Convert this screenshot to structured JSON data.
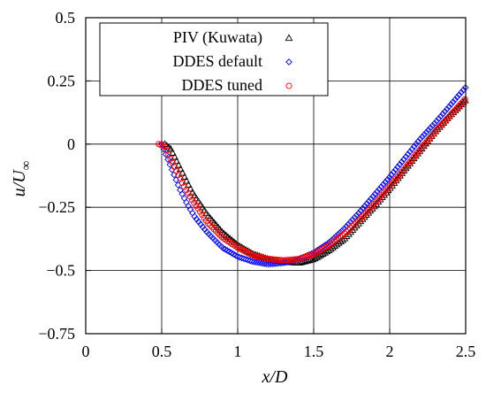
{
  "chart_data": {
    "type": "scatter",
    "title": "",
    "xlabel": "x/D",
    "ylabel_main": "u/U",
    "ylabel_sub": "∞",
    "xlim": [
      0,
      2.5
    ],
    "ylim": [
      -0.75,
      0.5
    ],
    "grid": true,
    "legend_position": "top-left",
    "x_ticks": [
      {
        "value": 0,
        "label": "0"
      },
      {
        "value": 0.5,
        "label": "0.5"
      },
      {
        "value": 1,
        "label": "1"
      },
      {
        "value": 1.5,
        "label": "1.5"
      },
      {
        "value": 2,
        "label": "2"
      },
      {
        "value": 2.5,
        "label": "2.5"
      }
    ],
    "y_ticks": [
      {
        "value": 0.5,
        "label": "0.5"
      },
      {
        "value": 0.25,
        "label": "0.25"
      },
      {
        "value": 0,
        "label": "0"
      },
      {
        "value": -0.25,
        "label": "−0.25"
      },
      {
        "value": -0.5,
        "label": "−0.5"
      },
      {
        "value": -0.75,
        "label": "−0.75"
      }
    ],
    "series": [
      {
        "name": "PIV (Kuwata)",
        "marker": "triangle",
        "color": "#000000",
        "x": [
          0.52,
          0.56,
          0.6,
          0.65,
          0.7,
          0.8,
          0.9,
          1.0,
          1.1,
          1.2,
          1.3,
          1.4,
          1.5,
          1.6,
          1.7,
          1.8,
          1.9,
          2.0,
          2.1,
          2.2,
          2.3,
          2.4,
          2.5
        ],
        "y": [
          0.0,
          -0.02,
          -0.07,
          -0.13,
          -0.19,
          -0.28,
          -0.35,
          -0.4,
          -0.435,
          -0.455,
          -0.465,
          -0.47,
          -0.455,
          -0.42,
          -0.375,
          -0.31,
          -0.245,
          -0.175,
          -0.1,
          -0.025,
          0.05,
          0.115,
          0.175
        ]
      },
      {
        "name": "DDES default",
        "marker": "diamond",
        "color": "#0000ff",
        "x": [
          0.5,
          0.54,
          0.58,
          0.62,
          0.67,
          0.72,
          0.8,
          0.9,
          1.0,
          1.1,
          1.2,
          1.3,
          1.4,
          1.5,
          1.6,
          1.7,
          1.8,
          1.9,
          2.0,
          2.1,
          2.2,
          2.3,
          2.4,
          2.5
        ],
        "y": [
          0.0,
          -0.06,
          -0.12,
          -0.18,
          -0.24,
          -0.29,
          -0.35,
          -0.41,
          -0.445,
          -0.465,
          -0.475,
          -0.47,
          -0.455,
          -0.43,
          -0.39,
          -0.335,
          -0.27,
          -0.2,
          -0.13,
          -0.055,
          0.02,
          0.085,
          0.155,
          0.225
        ]
      },
      {
        "name": "DDES tuned",
        "marker": "circle",
        "color": "#ff0000",
        "x": [
          0.48,
          0.52,
          0.56,
          0.6,
          0.65,
          0.7,
          0.8,
          0.9,
          1.0,
          1.1,
          1.2,
          1.3,
          1.4,
          1.5,
          1.6,
          1.7,
          1.8,
          1.9,
          2.0,
          2.1,
          2.2,
          2.3,
          2.4,
          2.5
        ],
        "y": [
          0.0,
          -0.01,
          -0.06,
          -0.11,
          -0.17,
          -0.22,
          -0.31,
          -0.37,
          -0.41,
          -0.44,
          -0.455,
          -0.46,
          -0.455,
          -0.435,
          -0.4,
          -0.355,
          -0.3,
          -0.235,
          -0.165,
          -0.095,
          -0.02,
          0.05,
          0.115,
          0.18
        ]
      }
    ]
  }
}
